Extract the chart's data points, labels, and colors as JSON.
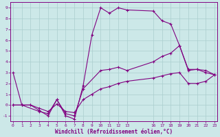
{
  "xlabel": "Windchill (Refroidissement éolien,°C)",
  "bg_color": "#cce8e8",
  "line_color": "#800080",
  "grid_color": "#aacece",
  "line1_x": [
    0,
    1,
    2,
    3,
    4,
    5,
    6,
    7,
    8,
    9,
    10,
    11,
    12,
    13,
    16,
    17,
    18,
    19,
    20,
    21,
    22,
    23
  ],
  "line1_y": [
    3,
    0,
    0,
    -0.5,
    -1,
    0.5,
    -1,
    -1.3,
    1.8,
    6.5,
    9.0,
    8.5,
    9.0,
    8.8,
    8.7,
    7.8,
    7.5,
    5.5,
    3.2,
    3.3,
    3.0,
    2.8
  ],
  "line2_x": [
    0,
    1,
    3,
    4,
    5,
    6,
    7,
    8,
    10,
    11,
    12,
    13,
    16,
    17,
    18,
    19,
    20,
    21,
    22,
    23
  ],
  "line2_y": [
    0,
    0,
    -0.6,
    -0.8,
    0.5,
    -0.8,
    -1.0,
    1.5,
    3.2,
    3.3,
    3.5,
    3.2,
    4.0,
    4.5,
    4.8,
    5.5,
    3.3,
    3.3,
    3.2,
    2.8
  ],
  "line3_x": [
    0,
    1,
    2,
    3,
    4,
    5,
    6,
    7,
    8,
    9,
    10,
    11,
    12,
    13,
    16,
    17,
    18,
    19,
    20,
    21,
    22,
    23
  ],
  "line3_y": [
    0,
    0,
    0.0,
    -0.3,
    -0.6,
    0.1,
    -0.6,
    -0.7,
    0.5,
    1.0,
    1.5,
    1.7,
    2.0,
    2.2,
    2.5,
    2.7,
    2.9,
    3.0,
    2.0,
    2.0,
    2.2,
    2.8
  ],
  "xlim": [
    0,
    23
  ],
  "ylim": [
    -1.5,
    9.5
  ],
  "xticks": [
    0,
    1,
    2,
    3,
    4,
    5,
    6,
    7,
    8,
    9,
    10,
    11,
    12,
    13,
    16,
    17,
    18,
    19,
    20,
    21,
    22,
    23
  ],
  "yticks": [
    -1,
    0,
    1,
    2,
    3,
    4,
    5,
    6,
    7,
    8,
    9
  ]
}
